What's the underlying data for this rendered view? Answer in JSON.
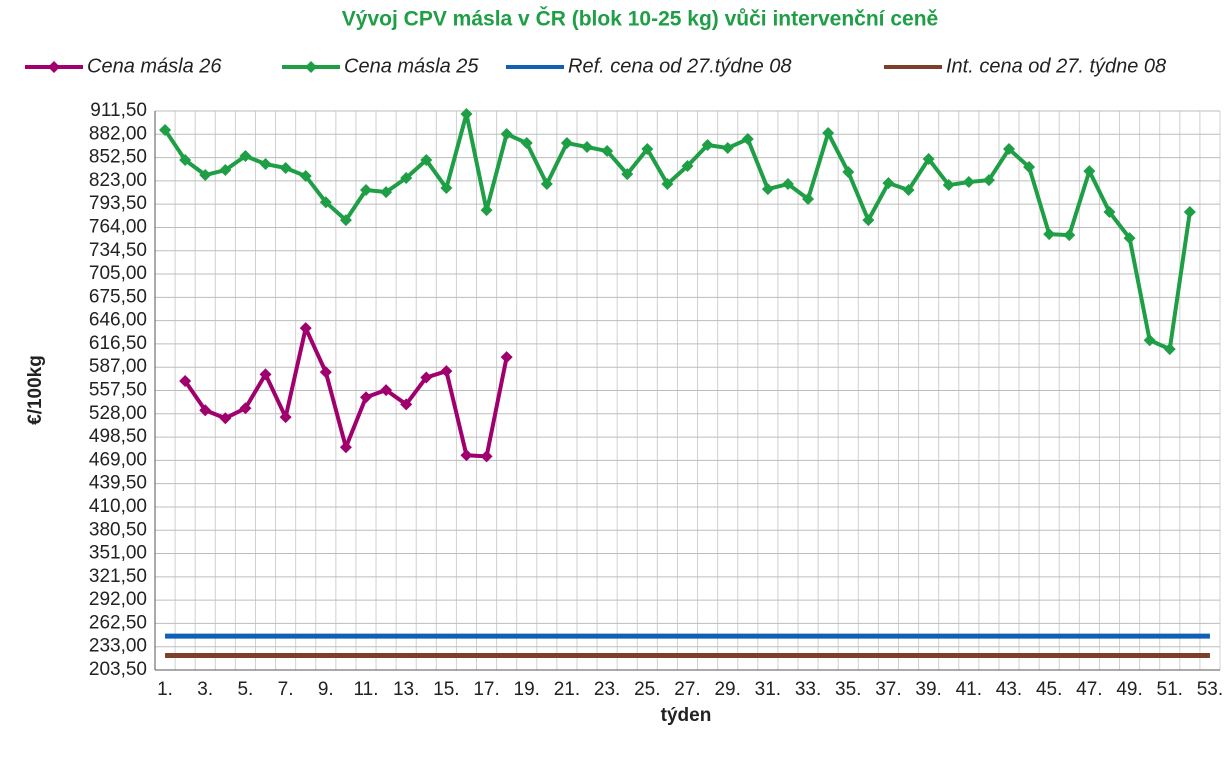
{
  "chart_data": {
    "type": "line",
    "title": "Vývoj CPV másla v ČR (blok 10-25 kg) vůči intervenční ceně",
    "xlabel": "týden",
    "ylabel": "€/100kg",
    "categories": [
      "1.",
      null,
      "3.",
      null,
      "5.",
      null,
      "7.",
      null,
      "9.",
      null,
      "11.",
      null,
      "13.",
      null,
      "15.",
      null,
      "17.",
      null,
      "19.",
      null,
      "21.",
      null,
      "23.",
      null,
      "25.",
      null,
      "27.",
      null,
      "29.",
      null,
      "31.",
      null,
      "33.",
      null,
      "35.",
      null,
      "37.",
      null,
      "39.",
      null,
      "41.",
      null,
      "43.",
      null,
      "45.",
      null,
      "47.",
      null,
      "49.",
      null,
      "51.",
      null,
      "53."
    ],
    "series": [
      {
        "name": "Cena másla 26",
        "color": "#a0006e",
        "marker": true,
        "values": [
          null,
          569.5,
          532.5,
          522.4,
          535,
          578,
          523.7,
          636.5,
          580.7,
          485.6,
          549,
          558,
          540,
          574,
          582,
          475.5,
          474,
          599.7,
          null,
          null,
          null,
          null,
          null,
          null,
          null,
          null,
          null,
          null,
          null,
          null,
          null,
          null,
          null,
          null,
          null,
          null,
          null,
          null,
          null,
          null,
          null,
          null,
          null,
          null,
          null,
          null,
          null,
          null,
          null,
          null,
          null,
          null,
          null
        ]
      },
      {
        "name": "Cena másla 25",
        "color": "#1e9e45",
        "marker": true,
        "values": [
          887.5,
          849.4,
          830.4,
          836.7,
          854.5,
          844.3,
          839.3,
          829.1,
          796,
          773.3,
          811.4,
          808.8,
          826.6,
          849.4,
          813.9,
          907.7,
          786,
          882.3,
          870.9,
          819,
          870.9,
          865.9,
          860.8,
          831.6,
          863.3,
          819,
          841.8,
          868.4,
          864.6,
          876,
          812.6,
          819,
          800,
          883.6,
          834.2,
          773.3,
          820.2,
          811.4,
          850.7,
          817.7,
          821.5,
          824,
          863.3,
          840.5,
          755.6,
          754.3,
          835.4,
          783.5,
          750.5,
          621.2,
          609.9,
          783.5,
          null
        ]
      },
      {
        "name": "Ref. cena od 27.týdne 08",
        "color": "#1060b8",
        "marker": false,
        "values": [
          246.4,
          246.4,
          246.4,
          246.4,
          246.4,
          246.4,
          246.4,
          246.4,
          246.4,
          246.4,
          246.4,
          246.4,
          246.4,
          246.4,
          246.4,
          246.4,
          246.4,
          246.4,
          246.4,
          246.4,
          246.4,
          246.4,
          246.4,
          246.4,
          246.4,
          246.4,
          246.4,
          246.4,
          246.4,
          246.4,
          246.4,
          246.4,
          246.4,
          246.4,
          246.4,
          246.4,
          246.4,
          246.4,
          246.4,
          246.4,
          246.4,
          246.4,
          246.4,
          246.4,
          246.4,
          246.4,
          246.4,
          246.4,
          246.4,
          246.4,
          246.4,
          246.4,
          246.4
        ]
      },
      {
        "name": "Int. cena od 27. týdne 08",
        "color": "#7b3f2a",
        "marker": false,
        "values": [
          221.8,
          221.8,
          221.8,
          221.8,
          221.8,
          221.8,
          221.8,
          221.8,
          221.8,
          221.8,
          221.8,
          221.8,
          221.8,
          221.8,
          221.8,
          221.8,
          221.8,
          221.8,
          221.8,
          221.8,
          221.8,
          221.8,
          221.8,
          221.8,
          221.8,
          221.8,
          221.8,
          221.8,
          221.8,
          221.8,
          221.8,
          221.8,
          221.8,
          221.8,
          221.8,
          221.8,
          221.8,
          221.8,
          221.8,
          221.8,
          221.8,
          221.8,
          221.8,
          221.8,
          221.8,
          221.8,
          221.8,
          221.8,
          221.8,
          221.8,
          221.8,
          221.8,
          221.8
        ]
      }
    ],
    "ylim": [
      203.5,
      911.5
    ],
    "yticks": [
      {
        "value": 203.5,
        "label": "203,50"
      },
      {
        "value": 233,
        "label": "233,00"
      },
      {
        "value": 262.5,
        "label": "262,50"
      },
      {
        "value": 292,
        "label": "292,00"
      },
      {
        "value": 321.5,
        "label": "321,50"
      },
      {
        "value": 351,
        "label": "351,00"
      },
      {
        "value": 380.5,
        "label": "380,50"
      },
      {
        "value": 410,
        "label": "410,00"
      },
      {
        "value": 439.5,
        "label": "439,50"
      },
      {
        "value": 469,
        "label": "469,00"
      },
      {
        "value": 498.5,
        "label": "498,50"
      },
      {
        "value": 528,
        "label": "528,00"
      },
      {
        "value": 557.5,
        "label": "557,50"
      },
      {
        "value": 587,
        "label": "587,00"
      },
      {
        "value": 616.5,
        "label": "616,50"
      },
      {
        "value": 646,
        "label": "646,00"
      },
      {
        "value": 675.5,
        "label": "675,50"
      },
      {
        "value": 705,
        "label": "705,00"
      },
      {
        "value": 734.5,
        "label": "734,50"
      },
      {
        "value": 764,
        "label": "764,00"
      },
      {
        "value": 793.5,
        "label": "793,50"
      },
      {
        "value": 823,
        "label": "823,00"
      },
      {
        "value": 852.5,
        "label": "852,50"
      },
      {
        "value": 882,
        "label": "882,00"
      },
      {
        "value": 911.5,
        "label": "911,50"
      }
    ],
    "grid": true,
    "legend": "top"
  }
}
